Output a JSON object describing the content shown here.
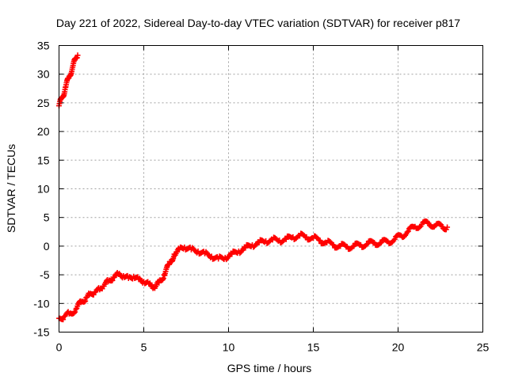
{
  "chart_data": {
    "type": "scatter",
    "title": "Day 221 of 2022, Sidereal Day-to-day VTEC variation (SDTVAR) for receiver p817",
    "xlabel": "GPS time / hours",
    "ylabel": "SDTVAR / TECUs",
    "xlim": [
      0,
      25
    ],
    "ylim": [
      -15,
      35
    ],
    "x_ticks": [
      0,
      5,
      10,
      15,
      20,
      25
    ],
    "y_ticks": [
      -15,
      -10,
      -5,
      0,
      5,
      10,
      15,
      20,
      25,
      30,
      35
    ],
    "grid": true,
    "marker": "+",
    "series": [
      {
        "name": "SDTVAR",
        "color": "#ff0000",
        "x": [
          0.0,
          0.2,
          0.4,
          0.6,
          0.8,
          1.0,
          1.1,
          0.0,
          0.3,
          0.6,
          1.0,
          1.3,
          1.6,
          1.8,
          2.1,
          2.4,
          2.6,
          2.9,
          3.2,
          3.5,
          3.8,
          4.1,
          4.4,
          4.7,
          5.0,
          5.3,
          5.6,
          5.9,
          6.2,
          6.5,
          6.8,
          7.1,
          7.4,
          7.8,
          8.2,
          8.6,
          9.0,
          9.4,
          9.8,
          10.2,
          10.6,
          11.0,
          11.4,
          11.8,
          12.2,
          12.6,
          13.0,
          13.4,
          13.8,
          14.2,
          14.6,
          15.0,
          15.4,
          15.8,
          16.2,
          16.6,
          17.0,
          17.4,
          17.8,
          18.2,
          18.6,
          19.0,
          19.4,
          19.8,
          20.2,
          20.6,
          21.0,
          21.4,
          21.8,
          22.2,
          22.6,
          22.9
        ],
        "y": [
          24.5,
          26.0,
          27.8,
          29.6,
          31.2,
          32.8,
          33.3,
          -12.6,
          -12.3,
          -11.8,
          -11.0,
          -9.8,
          -9.0,
          -8.4,
          -8.0,
          -7.6,
          -7.0,
          -6.2,
          -5.4,
          -4.9,
          -5.2,
          -5.6,
          -5.3,
          -5.8,
          -6.2,
          -6.6,
          -7.2,
          -6.4,
          -5.0,
          -3.2,
          -1.4,
          -0.6,
          -0.2,
          -0.6,
          -0.9,
          -1.3,
          -1.8,
          -2.2,
          -2.0,
          -1.4,
          -0.9,
          -0.3,
          0.2,
          0.6,
          0.9,
          1.1,
          1.0,
          1.2,
          1.6,
          1.8,
          1.6,
          1.4,
          1.0,
          0.6,
          0.2,
          0.0,
          -0.1,
          0.0,
          0.2,
          0.4,
          0.6,
          0.6,
          0.8,
          1.2,
          1.8,
          2.6,
          3.4,
          3.8,
          4.0,
          3.6,
          3.4,
          3.3
        ]
      }
    ]
  }
}
